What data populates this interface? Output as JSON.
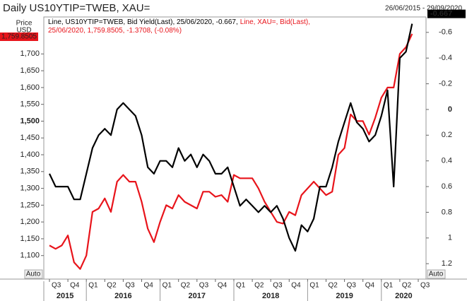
{
  "chart_data": {
    "type": "line",
    "title": "Daily US10YTIP=TWEB, XAU=",
    "date_range": "26/06/2015 - 29/09/2020",
    "y_axis_label": [
      "Price",
      "USD"
    ],
    "auto_label": "Auto",
    "legend_lines": [
      [
        {
          "text": "Line, US10YTIP=TWEB, Bid Yield(Last), 25/06/2020, -0.667,",
          "color": "#000000"
        },
        {
          "text": "Line, XAU=, Bid(Last),",
          "color": "#e8141b"
        }
      ],
      [
        {
          "text": "25/06/2020, 1,759.8505, -1.3708, (-0.08%)",
          "color": "#e8141b"
        }
      ]
    ],
    "last_value_labels": {
      "y2": "-0.667",
      "y": "1,759.8505"
    },
    "categories": [
      "Q3",
      null,
      null,
      "Q4",
      null,
      null,
      "Q1",
      null,
      null,
      "Q2",
      null,
      null,
      "Q3",
      null,
      null,
      "Q4",
      null,
      null,
      "Q1",
      null,
      null,
      "Q2",
      null,
      null,
      "Q3",
      null,
      null,
      "Q4",
      null,
      null,
      "Q1",
      null,
      null,
      "Q2",
      null,
      null,
      "Q3",
      null,
      null,
      "Q4",
      null,
      null,
      "Q1",
      null,
      null,
      "Q2",
      null,
      null,
      "Q3",
      null,
      null,
      "Q4",
      null,
      null,
      "Q1",
      null,
      null,
      "Q2",
      null,
      null,
      "Q3"
    ],
    "years": [
      "2015",
      "2016",
      "2017",
      "2018",
      "2019",
      "2020"
    ],
    "series": [
      {
        "name": "US10YTIP=TWEB",
        "color": "#000000",
        "axis": "y2",
        "values": [
          0.5,
          0.6,
          0.6,
          0.6,
          0.7,
          0.7,
          0.5,
          0.3,
          0.2,
          0.15,
          0.2,
          0.0,
          -0.05,
          0.0,
          0.05,
          0.2,
          0.45,
          0.5,
          0.4,
          0.4,
          0.45,
          0.3,
          0.4,
          0.35,
          0.45,
          0.35,
          0.4,
          0.5,
          0.5,
          0.45,
          0.6,
          0.75,
          0.7,
          0.75,
          0.8,
          0.75,
          0.8,
          0.75,
          0.85,
          1.0,
          1.1,
          0.9,
          0.95,
          0.85,
          0.6,
          0.6,
          0.45,
          0.25,
          0.1,
          -0.05,
          0.1,
          0.15,
          0.25,
          0.2,
          0.05,
          -0.15,
          0.6,
          -0.4,
          -0.45,
          -0.667,
          null
        ]
      },
      {
        "name": "XAU=",
        "color": "#e8141b",
        "axis": "y",
        "values": [
          1130,
          1120,
          1130,
          1160,
          1080,
          1060,
          1100,
          1230,
          1240,
          1270,
          1230,
          1320,
          1340,
          1320,
          1320,
          1260,
          1180,
          1140,
          1200,
          1250,
          1240,
          1280,
          1260,
          1250,
          1240,
          1290,
          1290,
          1275,
          1280,
          1260,
          1340,
          1330,
          1330,
          1330,
          1300,
          1260,
          1230,
          1200,
          1195,
          1230,
          1220,
          1280,
          1300,
          1320,
          1300,
          1280,
          1290,
          1400,
          1420,
          1520,
          1500,
          1500,
          1460,
          1510,
          1570,
          1600,
          1600,
          1700,
          1720,
          1759.8505,
          null
        ]
      }
    ],
    "ylim": [
      1030,
      1810
    ],
    "yticks": [
      {
        "value": 1100,
        "label": "1,100"
      },
      {
        "value": 1150,
        "label": "1,150"
      },
      {
        "value": 1200,
        "label": "1,200"
      },
      {
        "value": 1250,
        "label": "1,250"
      },
      {
        "value": 1300,
        "label": "1,300"
      },
      {
        "value": 1350,
        "label": "1,350"
      },
      {
        "value": 1400,
        "label": "1,400"
      },
      {
        "value": 1450,
        "label": "1,450"
      },
      {
        "value": 1500,
        "label": "1,500"
      },
      {
        "value": 1550,
        "label": "1,550"
      },
      {
        "value": 1600,
        "label": "1,600"
      },
      {
        "value": 1650,
        "label": "1,650"
      },
      {
        "value": 1700,
        "label": "1,700"
      }
    ],
    "y2lim": [
      1.32,
      -0.72
    ],
    "y2ticks": [
      -0.6,
      -0.4,
      -0.2,
      0,
      0.2,
      0.4,
      0.6,
      0.8,
      1,
      1.2
    ]
  }
}
